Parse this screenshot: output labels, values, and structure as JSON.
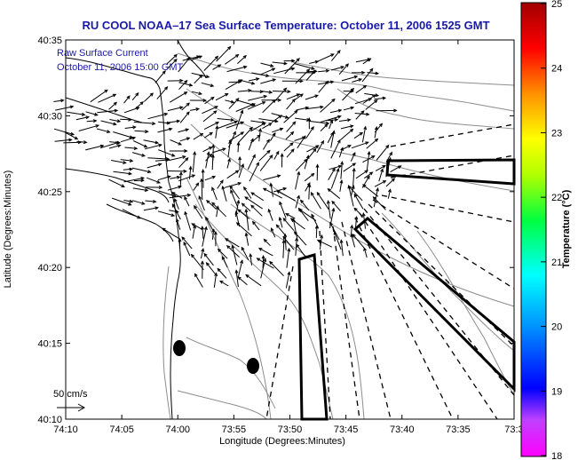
{
  "title": "RU COOL  NOAA–17  Sea Surface Temperature:  October 11, 2006 1525 GMT",
  "overlay": {
    "line1": "Raw Surface Current",
    "line2": "October 11, 2006 15:00 GMT",
    "scale_label": "50 cm/s"
  },
  "axes": {
    "xlabel": "Longitude (Degrees:Minutes)",
    "ylabel": "Latitude (Degrees:Minutes)",
    "xticks": [
      "74:10",
      "74:05",
      "74:00",
      "73:55",
      "73:50",
      "73:45",
      "73:40",
      "73:35",
      "73:3"
    ],
    "yticks": [
      "40:35",
      "40:30",
      "40:25",
      "40:20",
      "40:15",
      "40:10"
    ]
  },
  "colorbar": {
    "label": "Temperature (°C)",
    "min": 18,
    "max": 25,
    "ticks": [
      "25",
      "24",
      "23",
      "22",
      "21",
      "20",
      "19",
      "18"
    ]
  },
  "colors": {
    "title": "#1a1aa8",
    "coast": "#000000",
    "bathymetry": "#8c8c8c",
    "vectors": "#000000"
  }
}
